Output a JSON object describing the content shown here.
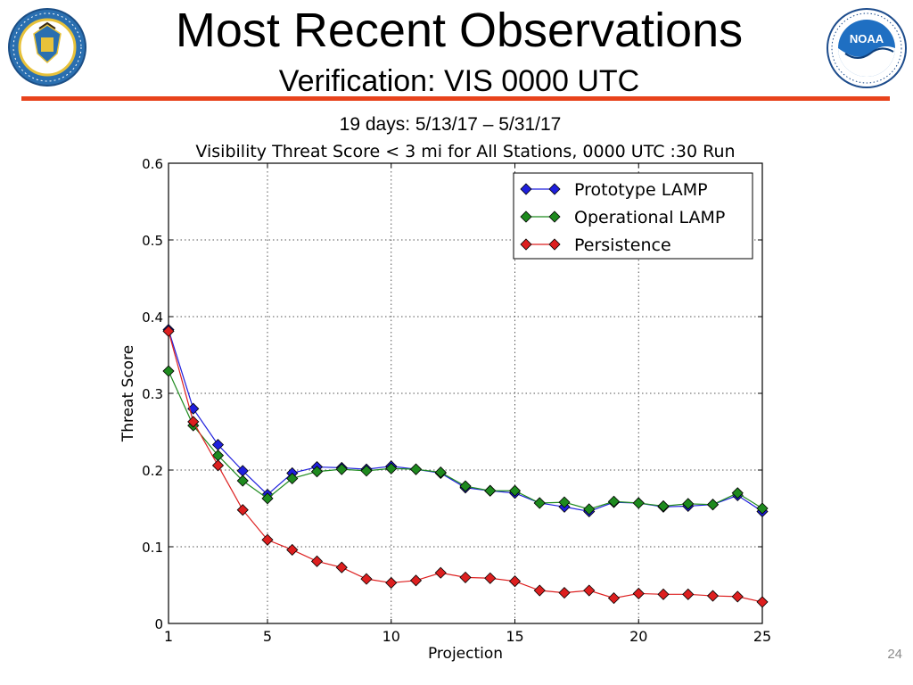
{
  "slide": {
    "title": "Most Recent Observations",
    "subtitle": "Verification: VIS 0000 UTC",
    "date_range": "19 days: 5/13/17 – 5/31/17",
    "page_number": "24"
  },
  "logos": {
    "left": {
      "name": "department-of-commerce-seal",
      "text": "DEPARTMENT OF COMMERCE • UNITED STATES OF AMERICA"
    },
    "right": {
      "name": "noaa-logo",
      "text": "NOAA",
      "ring_text": "NATIONAL OCEANIC AND ATMOSPHERIC ADMINISTRATION • U.S. DEPARTMENT OF COMMERCE"
    }
  },
  "colors": {
    "accent_rule": "#e8431c"
  },
  "chart_data": {
    "type": "line",
    "title": "Visibility Threat Score < 3 mi for All Stations, 0000 UTC :30 Run",
    "xlabel": "Projection",
    "ylabel": "Threat Score",
    "xlim": [
      1,
      25
    ],
    "ylim": [
      0,
      0.6
    ],
    "x_ticks": [
      1,
      5,
      10,
      15,
      20,
      25
    ],
    "y_ticks": [
      0,
      0.1,
      0.2,
      0.3,
      0.4,
      0.5,
      0.6
    ],
    "y_tick_labels": [
      "0",
      "0.1",
      "0.2",
      "0.3",
      "0.4",
      "0.5",
      "0.6"
    ],
    "grid": true,
    "legend_position": "top-right",
    "x": [
      1,
      2,
      3,
      4,
      5,
      6,
      7,
      8,
      9,
      10,
      11,
      12,
      13,
      14,
      15,
      16,
      17,
      18,
      19,
      20,
      21,
      22,
      23,
      24,
      25
    ],
    "series": [
      {
        "name": "Prototype LAMP",
        "color": "#1f1fdd",
        "values": [
          0.383,
          0.28,
          0.233,
          0.199,
          0.168,
          0.196,
          0.204,
          0.203,
          0.201,
          0.205,
          0.201,
          0.196,
          0.177,
          0.173,
          0.17,
          0.157,
          0.152,
          0.146,
          0.158,
          0.157,
          0.152,
          0.153,
          0.155,
          0.167,
          0.146
        ]
      },
      {
        "name": "Operational LAMP",
        "color": "#1e8a1e",
        "values": [
          0.329,
          0.258,
          0.219,
          0.186,
          0.163,
          0.189,
          0.198,
          0.201,
          0.199,
          0.202,
          0.201,
          0.197,
          0.179,
          0.173,
          0.173,
          0.157,
          0.158,
          0.149,
          0.159,
          0.157,
          0.153,
          0.156,
          0.155,
          0.17,
          0.15
        ]
      },
      {
        "name": "Persistence",
        "color": "#dd1f1f",
        "values": [
          0.381,
          0.263,
          0.206,
          0.148,
          0.109,
          0.096,
          0.081,
          0.073,
          0.058,
          0.053,
          0.056,
          0.066,
          0.06,
          0.059,
          0.055,
          0.043,
          0.04,
          0.043,
          0.033,
          0.039,
          0.038,
          0.038,
          0.036,
          0.035,
          0.028
        ]
      }
    ]
  }
}
